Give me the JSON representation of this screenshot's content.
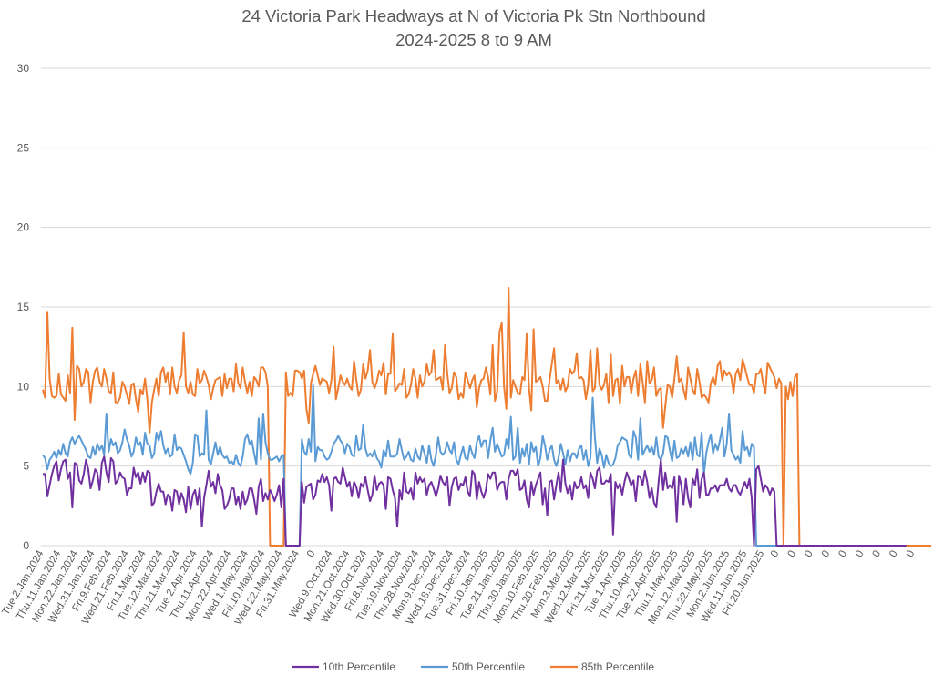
{
  "chart_data": {
    "type": "line",
    "title": "24 Victoria Park Headways at N of Victoria Pk Stn Northbound",
    "subtitle": "2024-2025 8 to 9 AM",
    "xlabel": "",
    "ylabel": "",
    "ylim": [
      0,
      30
    ],
    "yticks": [
      0,
      5,
      10,
      15,
      20,
      25,
      30
    ],
    "grid": true,
    "legend_position": "bottom",
    "x_tick_labels": [
      "Tue.2.Jan.2024",
      "Thu.11.Jan.2024",
      "Mon.22.Jan.2024",
      "Wed.31.Jan.2024",
      "Fri.9.Feb.2024",
      "Wed.21.Feb.2024",
      "Fri.1.Mar.2024",
      "Tue.12.Mar.2024",
      "Thu.21.Mar.2024",
      "Tue.2.Apr.2024",
      "Thu.11.Apr.2024",
      "Mon.22.Apr.2024",
      "Wed.1.May.2024",
      "Fri.10.May.2024",
      "Wed.22.May.2024",
      "Fri.31.May.2024",
      "0",
      "Wed.9.Oct.2024",
      "Mon.21.Oct.2024",
      "Wed.30.Oct.2024",
      "Fri.8.Nov.2024",
      "Tue.19.Nov.2024",
      "Thu.28.Nov.2024",
      "Mon.9.Dec.2024",
      "Wed.18.Dec.2024",
      "Tue.31.Dec.2024",
      "Fri.10.Jan.2025",
      "Tue.21.Jan.2025",
      "Thu.30.Jan.2025",
      "Mon.10.Feb.2025",
      "Thu.20.Feb.2025",
      "Mon.3.Mar.2025",
      "Wed.12.Mar.2025",
      "Fri.21.Mar.2025",
      "Tue.1.Apr.2025",
      "Thu.10.Apr.2025",
      "Tue.22.Apr.2025",
      "Thu.1.May.2025",
      "Mon.12.May.2025",
      "Thu.22.May.2025",
      "Mon.2.Jun.2025",
      "Wed.11.Jun.2025",
      "Fri.20.Jun.2025",
      "0",
      "0",
      "0",
      "0",
      "0",
      "0",
      "0",
      "0",
      "0"
    ],
    "series": [
      {
        "name": "10th Percentile",
        "color": "#7030a0",
        "values": [
          4.5,
          4.5,
          3.1,
          3.8,
          4.5,
          5.0,
          5.3,
          4.1,
          4.8,
          5.3,
          5.4,
          4.2,
          4.6,
          2.4,
          5.2,
          5.1,
          4.1,
          3.9,
          4.5,
          5.4,
          4.8,
          3.6,
          4.1,
          4.8,
          4.6,
          3.5,
          5.2,
          5.6,
          4.6,
          4.0,
          5.5,
          5.3,
          3.9,
          4.1,
          4.6,
          4.3,
          4.2,
          3.2,
          3.6,
          3.6,
          4.9,
          4.3,
          4.6,
          3.9,
          4.6,
          4.0,
          4.7,
          4.6,
          2.5,
          2.7,
          3.4,
          3.9,
          3.4,
          3.4,
          2.6,
          3.2,
          3.1,
          2.2,
          3.5,
          3.4,
          2.6,
          3.3,
          2.9,
          2.1,
          3.7,
          2.3,
          3.2,
          3.5,
          2.6,
          3.6,
          1.2,
          3.0,
          3.8,
          4.7,
          3.7,
          4.0,
          3.3,
          4.5,
          3.8,
          3.5,
          2.3,
          2.5,
          2.9,
          3.6,
          3.6,
          2.6,
          3.1,
          2.3,
          3.4,
          2.6,
          2.9,
          3.6,
          3.6,
          2.9,
          2.0,
          3.7,
          4.2,
          2.8,
          3.3,
          2.9,
          3.5,
          3.2,
          2.8,
          3.2,
          3.8,
          2.4,
          4.2,
          0,
          0,
          0,
          0,
          0,
          0,
          0,
          4.0,
          2.7,
          3.7,
          3.8,
          3.9,
          2.9,
          3.2,
          4.1,
          4.0,
          4.5,
          4.0,
          4.3,
          3.8,
          2.2,
          4.2,
          4.3,
          4.0,
          3.9,
          4.9,
          4.3,
          3.7,
          4.0,
          3.1,
          4.0,
          3.7,
          3.0,
          3.9,
          3.7,
          4.3,
          3.5,
          2.8,
          3.2,
          4.4,
          3.5,
          3.9,
          4.0,
          3.8,
          2.3,
          4.3,
          4.2,
          3.5,
          3.0,
          1.2,
          3.5,
          2.9,
          4.6,
          3.4,
          3.3,
          3.6,
          2.9,
          4.6,
          3.9,
          4.3,
          4.0,
          4.2,
          3.2,
          3.8,
          4.0,
          3.6,
          3.1,
          3.6,
          4.4,
          4.0,
          3.8,
          4.3,
          2.5,
          3.7,
          4.2,
          4.3,
          3.5,
          3.9,
          3.8,
          4.3,
          3.4,
          3.1,
          4.7,
          4.5,
          2.9,
          4.0,
          3.4,
          3.0,
          3.5,
          4.5,
          4.2,
          4.6,
          4.6,
          3.5,
          3.9,
          4.0,
          4.0,
          2.9,
          4.2,
          4.7,
          4.7,
          4.4,
          4.8,
          3.5,
          3.6,
          4.1,
          2.9,
          2.4,
          4.0,
          3.2,
          3.8,
          4.2,
          4.6,
          2.6,
          3.6,
          1.9,
          4.0,
          4.1,
          2.9,
          3.8,
          4.6,
          3.4,
          5.4,
          3.9,
          3.3,
          3.8,
          2.9,
          4.0,
          3.6,
          3.7,
          4.3,
          3.6,
          3.8,
          3.0,
          4.6,
          4.2,
          3.6,
          4.7,
          4.9,
          3.9,
          3.9,
          4.1,
          4.0,
          4.5,
          0.7,
          4.0,
          3.6,
          3.9,
          3.2,
          4.0,
          4.6,
          4.2,
          3.8,
          4.1,
          2.8,
          4.4,
          4.3,
          3.8,
          4.7,
          4.0,
          3.0,
          3.6,
          2.7,
          2.4,
          4.0,
          5.4,
          3.5,
          4.6,
          3.6,
          3.8,
          3.6,
          4.3,
          1.5,
          4.4,
          3.8,
          2.6,
          4.2,
          3.0,
          2.4,
          4.2,
          3.8,
          4.8,
          3.0,
          4.2,
          4.6,
          3.2,
          3.2,
          3.6,
          3.6,
          3.8,
          3.4,
          3.8,
          3.8,
          3.8,
          4.2,
          3.6,
          3.4,
          3.8,
          3.8,
          3.4,
          3.2,
          3.6,
          4.0,
          3.6,
          4.2,
          3.0,
          0,
          4.8,
          5.0,
          4.2,
          3.4,
          3.8,
          3.6,
          3.2,
          3.6,
          3.4,
          0,
          0,
          0,
          0,
          0,
          0,
          0,
          0,
          0,
          0,
          0,
          0,
          0,
          0,
          0,
          0,
          0,
          0,
          0,
          0,
          0,
          0,
          0,
          0,
          0,
          0,
          0,
          0,
          0,
          0,
          0,
          0,
          0,
          0,
          0,
          0,
          0,
          0,
          0,
          0,
          0,
          0,
          0,
          0,
          0,
          0,
          0,
          0,
          0,
          0,
          0,
          0,
          0,
          0,
          0,
          0,
          0,
          0
        ]
      },
      {
        "name": "50th Percentile",
        "color": "#5b9bd5",
        "values": [
          5.7,
          5.5,
          4.8,
          5.4,
          5.6,
          5.9,
          5.5,
          6.0,
          5.7,
          6.4,
          5.8,
          5.6,
          6.5,
          6.8,
          6.4,
          6.7,
          6.9,
          6.6,
          6.3,
          6.0,
          5.6,
          5.5,
          6.2,
          5.7,
          6.4,
          6.0,
          6.3,
          5.7,
          8.3,
          5.9,
          6.7,
          6.3,
          6.5,
          5.8,
          6.0,
          6.5,
          7.3,
          6.7,
          6.3,
          5.6,
          5.9,
          6.8,
          6.3,
          6.5,
          5.7,
          7.1,
          6.4,
          6.3,
          5.5,
          5.8,
          7.1,
          6.6,
          7.2,
          6.3,
          5.8,
          6.1,
          5.6,
          5.7,
          7.0,
          6.0,
          6.2,
          6.1,
          5.7,
          5.3,
          4.8,
          4.5,
          5.2,
          7.0,
          6.9,
          5.6,
          5.8,
          5.7,
          8.5,
          5.4,
          5.1,
          5.8,
          6.5,
          5.7,
          6.2,
          5.7,
          5.5,
          5.6,
          5.2,
          5.3,
          5.1,
          5.7,
          5.2,
          5.0,
          5.6,
          6.7,
          7.0,
          6.4,
          6.6,
          5.8,
          5.1,
          8.0,
          5.4,
          8.3,
          6.5,
          5.8,
          5.4,
          5.4,
          5.5,
          5.6,
          5.3,
          5.6,
          5.7,
          0,
          0,
          0,
          0,
          0,
          0,
          0,
          6.7,
          5.9,
          5.7,
          6.7,
          5.9,
          10.1,
          5.3,
          6.2,
          6.0,
          6.0,
          5.6,
          5.4,
          5.5,
          5.9,
          6.4,
          6.6,
          6.9,
          6.6,
          6.4,
          5.8,
          6.4,
          6.2,
          5.7,
          5.6,
          6.9,
          6.0,
          6.1,
          7.6,
          6.1,
          5.6,
          5.8,
          5.6,
          6.0,
          5.5,
          5.3,
          4.9,
          6.0,
          5.6,
          6.6,
          5.6,
          5.6,
          5.6,
          5.8,
          6.7,
          6.0,
          5.4,
          5.6,
          5.9,
          5.4,
          5.3,
          6.1,
          5.6,
          5.4,
          6.3,
          5.8,
          5.2,
          6.3,
          5.4,
          5.0,
          5.7,
          6.8,
          5.9,
          5.7,
          5.9,
          6.5,
          6.0,
          5.8,
          6.5,
          5.4,
          5.1,
          5.7,
          6.2,
          5.5,
          5.4,
          6.3,
          5.8,
          5.5,
          6.5,
          6.9,
          6.2,
          6.6,
          6.6,
          5.5,
          6.6,
          7.4,
          5.9,
          6.4,
          6.0,
          5.6,
          5.7,
          6.7,
          6.1,
          8.1,
          5.4,
          5.6,
          7.4,
          5.2,
          6.1,
          5.6,
          6.4,
          5.1,
          6.5,
          5.9,
          6.2,
          5.0,
          5.5,
          6.9,
          6.3,
          5.4,
          6.0,
          6.3,
          5.4,
          5.0,
          5.5,
          6.4,
          5.8,
          5.1,
          6.0,
          5.3,
          5.8,
          5.8,
          5.5,
          6.1,
          6.3,
          5.4,
          6.0,
          5.0,
          5.5,
          9.3,
          6.8,
          5.2,
          6.1,
          5.7,
          4.9,
          5.7,
          5.2,
          5.0,
          5.1,
          5.5,
          6.3,
          6.5,
          6.8,
          6.7,
          6.6,
          5.7,
          5.5,
          7.2,
          6.8,
          5.4,
          8.0,
          5.7,
          6.0,
          6.3,
          5.9,
          6.2,
          5.7,
          6.8,
          5.6,
          5.4,
          5.8,
          6.9,
          6.8,
          6.0,
          5.3,
          6.6,
          5.5,
          5.6,
          6.1,
          5.8,
          6.2,
          5.6,
          6.5,
          5.4,
          6.8,
          5.7,
          5.6,
          7.1,
          4.5,
          5.8,
          6.5,
          7.0,
          5.8,
          6.4,
          6.0,
          6.6,
          7.4,
          5.6,
          6.4,
          8.3,
          6.0,
          5.7,
          5.4,
          5.6,
          5.2,
          7.2,
          6.0,
          6.2,
          5.6,
          6.4,
          6.2,
          0,
          0,
          0,
          0,
          0,
          0,
          0,
          0,
          0,
          0,
          0,
          0,
          0,
          0,
          0,
          0,
          0,
          0,
          0,
          0,
          0,
          0,
          0,
          0,
          0,
          0,
          0,
          0,
          0,
          0,
          0,
          0,
          0,
          0,
          0,
          0,
          0,
          0,
          0,
          0,
          0,
          0,
          0,
          0,
          0,
          0,
          0,
          0,
          0,
          0,
          0,
          0,
          0,
          0,
          0,
          0,
          0,
          0,
          0,
          0
        ]
      },
      {
        "name": "85th Percentile",
        "color": "#ed7d31",
        "values": [
          9.8,
          9.3,
          14.7,
          10.5,
          9.4,
          9.3,
          9.4,
          10.8,
          9.5,
          9.3,
          9.1,
          10.7,
          9.6,
          13.7,
          7.9,
          11.3,
          11.1,
          10.0,
          10.3,
          11.1,
          10.9,
          9.0,
          10.3,
          11.0,
          11.2,
          10.3,
          10.0,
          11.1,
          10.5,
          9.7,
          9.6,
          10.9,
          9.0,
          9.0,
          9.3,
          10.3,
          10.0,
          9.5,
          8.9,
          10.1,
          10.2,
          9.2,
          8.4,
          9.8,
          9.5,
          10.5,
          9.2,
          7.1,
          9.0,
          9.8,
          10.5,
          9.4,
          10.9,
          11.2,
          10.3,
          10.9,
          9.5,
          11.2,
          10.0,
          9.6,
          10.4,
          10.7,
          13.4,
          10.0,
          9.6,
          10.3,
          9.5,
          9.4,
          11.1,
          10.2,
          10.4,
          11.0,
          10.6,
          10.1,
          9.2,
          9.9,
          10.4,
          10.5,
          10.6,
          9.4,
          10.8,
          9.9,
          10.5,
          10.5,
          9.7,
          11.4,
          10.2,
          9.9,
          11.2,
          10.3,
          9.6,
          10.3,
          9.4,
          10.6,
          10.4,
          10.0,
          11.2,
          11.2,
          10.9,
          10.0,
          0,
          0,
          0,
          0,
          0,
          0,
          0,
          10.9,
          9.4,
          9.6,
          9.4,
          11.0,
          11.0,
          10.9,
          10.5,
          11.0,
          8.6,
          7.7,
          10.2,
          10.8,
          11.3,
          10.7,
          10.1,
          10.5,
          10.4,
          10.3,
          9.6,
          10.4,
          12.5,
          9.2,
          9.9,
          10.7,
          10.3,
          10.1,
          10.5,
          10.0,
          9.8,
          11.6,
          10.4,
          9.4,
          9.8,
          11.4,
          10.5,
          11.0,
          12.3,
          10.3,
          9.9,
          10.3,
          11.0,
          10.7,
          11.5,
          9.5,
          10.8,
          10.8,
          13.3,
          9.7,
          9.9,
          10.2,
          10.1,
          11.1,
          9.3,
          9.5,
          10.1,
          11.1,
          10.5,
          9.3,
          10.7,
          10.0,
          10.3,
          11.4,
          10.7,
          10.9,
          12.3,
          10.4,
          10.5,
          10.6,
          9.8,
          12.6,
          10.8,
          9.6,
          9.9,
          10.9,
          10.6,
          9.2,
          9.6,
          9.3,
          10.9,
          10.4,
          9.9,
          10.4,
          10.7,
          8.7,
          9.9,
          10.4,
          10.5,
          11.2,
          10.6,
          9.5,
          12.6,
          9.1,
          9.7,
          13.4,
          14.0,
          10.0,
          8.6,
          16.2,
          9.3,
          10.4,
          10.0,
          9.6,
          9.5,
          10.6,
          10.4,
          13.3,
          9.9,
          8.5,
          13.6,
          10.3,
          10.4,
          10.6,
          10.0,
          9.1,
          9.1,
          10.4,
          11.4,
          12.4,
          10.2,
          10.4,
          9.8,
          10.5,
          9.7,
          10.0,
          11.1,
          10.8,
          11.0,
          12.1,
          10.5,
          10.6,
          10.4,
          9.2,
          10.1,
          12.3,
          9.7,
          9.9,
          12.4,
          10.1,
          9.8,
          10.1,
          10.8,
          9.0,
          12.0,
          9.4,
          10.4,
          10.5,
          8.9,
          11.3,
          10.0,
          10.6,
          10.6,
          9.6,
          10.5,
          11.0,
          9.4,
          11.4,
          10.3,
          9.0,
          11.6,
          10.2,
          10.4,
          11.2,
          9.4,
          9.8,
          9.9,
          7.4,
          8.8,
          10.1,
          10.0,
          9.3,
          10.5,
          11.9,
          10.3,
          10.5,
          9.8,
          9.2,
          11.2,
          10.5,
          9.8,
          9.5,
          11.1,
          10.3,
          9.3,
          9.5,
          9.3,
          9.0,
          10.2,
          10.6,
          10.1,
          11.3,
          11.6,
          10.4,
          11.0,
          10.7,
          10.9,
          10.6,
          9.6,
          10.8,
          11.1,
          10.4,
          11.7,
          11.2,
          10.6,
          10.1,
          10.1,
          9.6,
          10.8,
          10.8,
          11.1,
          10.2,
          9.6,
          11.5,
          11.2,
          10.9,
          10.6,
          9.9,
          10.5,
          10.2,
          0,
          10.0,
          9.2,
          10.3,
          9.4,
          10.6,
          10.8,
          0,
          0,
          0,
          0,
          0,
          0,
          0,
          0,
          0,
          0,
          0,
          0,
          0,
          0,
          0,
          0,
          0,
          0,
          0,
          0,
          0,
          0,
          0,
          0,
          0,
          0,
          0,
          0,
          0,
          0,
          0,
          0,
          0,
          0,
          0,
          0,
          0,
          0,
          0,
          0,
          0,
          0,
          0,
          0,
          0,
          0,
          0,
          0,
          0,
          0,
          0,
          0,
          0,
          0,
          0,
          0,
          0,
          0,
          0
        ]
      }
    ]
  }
}
